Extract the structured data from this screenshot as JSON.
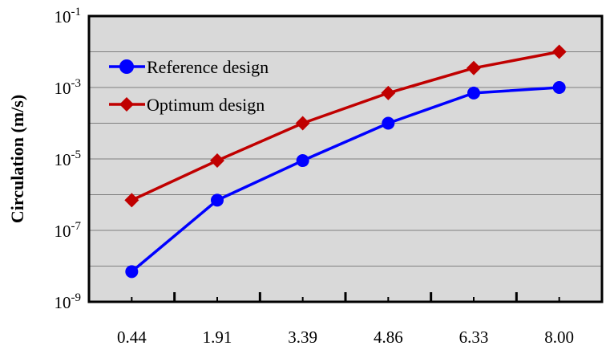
{
  "chart_data": {
    "type": "line",
    "title": "",
    "xlabel": "",
    "ylabel": "Circulation (m/s)",
    "y_scale": "log",
    "ylim": [
      1e-09,
      0.1
    ],
    "grid": true,
    "legend_position": "top-left",
    "categories": [
      "0.44",
      "1.91",
      "3.39",
      "4.86",
      "6.33",
      "8.00"
    ],
    "y_ticks": [
      {
        "value": 1e-09,
        "base": "10",
        "exp": "-9"
      },
      {
        "value": 1e-07,
        "base": "10",
        "exp": "-7"
      },
      {
        "value": 1e-05,
        "base": "10",
        "exp": "-5"
      },
      {
        "value": 0.001,
        "base": "10",
        "exp": "-3"
      },
      {
        "value": 0.1,
        "base": "10",
        "exp": "-1"
      }
    ],
    "series": [
      {
        "name": "Reference design",
        "color": "#0000ff",
        "marker": "circle",
        "values": [
          7e-09,
          7e-07,
          9e-06,
          0.0001,
          0.0007,
          0.001
        ]
      },
      {
        "name": "Optimum design",
        "color": "#c00000",
        "marker": "diamond",
        "values": [
          7e-07,
          9e-06,
          0.0001,
          0.0007,
          0.0035,
          0.01
        ]
      }
    ]
  }
}
